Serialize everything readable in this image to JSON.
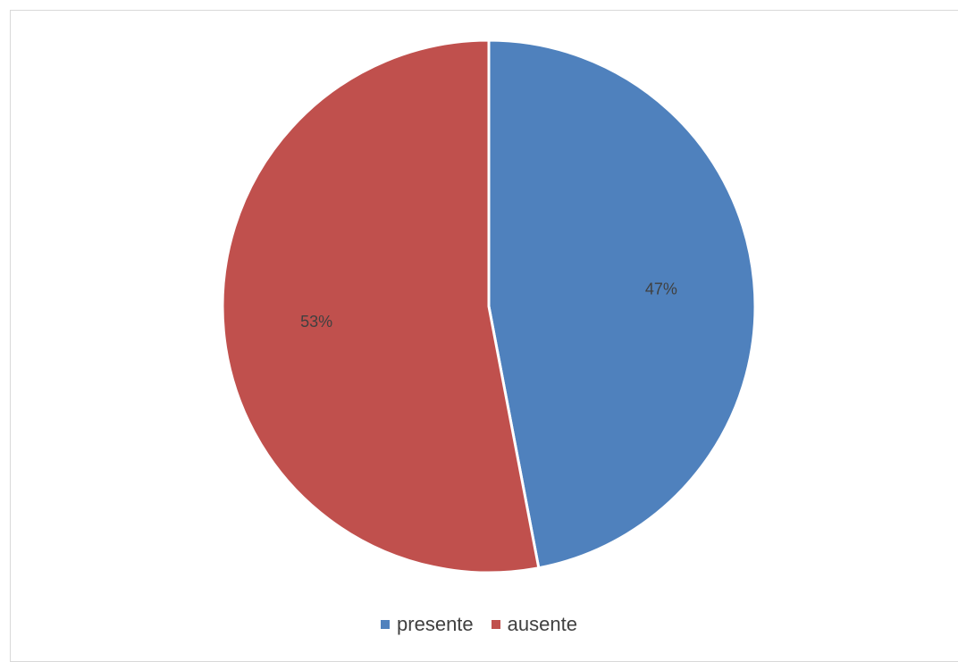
{
  "chart_data": {
    "type": "pie",
    "title": "",
    "categories": [
      "presente",
      "ausente"
    ],
    "values": [
      47,
      53
    ],
    "data_labels": [
      "47%",
      "53%"
    ],
    "colors": [
      "#4f81bd",
      "#c0504d"
    ],
    "start_angle_deg": 0,
    "direction": "clockwise",
    "legend_position": "bottom"
  },
  "legend": {
    "items": [
      {
        "label": "presente",
        "color": "#4f81bd"
      },
      {
        "label": "ausente",
        "color": "#c0504d"
      }
    ]
  }
}
